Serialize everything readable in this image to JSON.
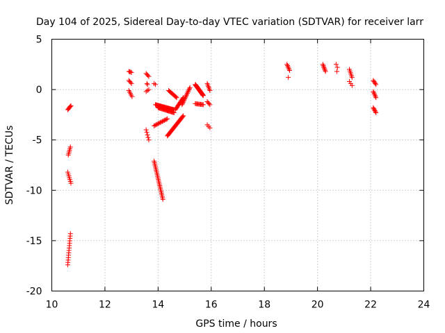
{
  "chart_data": {
    "type": "scatter",
    "title": "Day 104 of 2025, Sidereal Day-to-day VTEC variation (SDTVAR) for receiver larr",
    "xlabel": "GPS time / hours",
    "ylabel": "SDTVAR / TECUs",
    "xlim": [
      10,
      24
    ],
    "ylim": [
      -20,
      5
    ],
    "xticks": [
      "10",
      "12",
      "14",
      "16",
      "18",
      "20",
      "22",
      "24"
    ],
    "yticks": [
      "5",
      "0",
      "-5",
      "-10",
      "-15",
      "-20"
    ],
    "grid": true,
    "marker": "plus",
    "color": "#ff0000",
    "series": [
      {
        "name": "SDTVAR",
        "segments": [
          {
            "x": [
              10.6,
              10.72
            ],
            "y": [
              -2.0,
              -1.6
            ],
            "n": 6
          },
          {
            "x": [
              10.62,
              10.7
            ],
            "y": [
              -6.5,
              -5.7
            ],
            "n": 6
          },
          {
            "x": [
              10.6,
              10.72
            ],
            "y": [
              -8.2,
              -9.3
            ],
            "n": 7
          },
          {
            "x": [
              10.6,
              10.7
            ],
            "y": [
              -17.4,
              -14.3
            ],
            "n": 14
          },
          {
            "x": [
              12.9,
              13.0
            ],
            "y": [
              1.8,
              1.7
            ],
            "n": 4
          },
          {
            "x": [
              12.9,
              13.0
            ],
            "y": [
              0.9,
              0.6
            ],
            "n": 4
          },
          {
            "x": [
              12.9,
              13.02
            ],
            "y": [
              -0.1,
              -0.7
            ],
            "n": 5
          },
          {
            "x": [
              13.55,
              13.65
            ],
            "y": [
              1.6,
              1.3
            ],
            "n": 4
          },
          {
            "x": [
              13.58,
              13.6
            ],
            "y": [
              0.6,
              0.5
            ],
            "n": 2
          },
          {
            "x": [
              13.55,
              13.65
            ],
            "y": [
              -0.2,
              0.0
            ],
            "n": 3
          },
          {
            "x": [
              13.55,
              13.65
            ],
            "y": [
              -4.0,
              -5.0
            ],
            "n": 5
          },
          {
            "x": [
              13.85,
              13.9
            ],
            "y": [
              0.6,
              0.5
            ],
            "n": 2
          },
          {
            "x": [
              13.85,
              14.18
            ],
            "y": [
              -7.1,
              -10.9
            ],
            "n": 26
          },
          {
            "x": [
              13.85,
              14.35
            ],
            "y": [
              -3.6,
              -2.9
            ],
            "n": 14
          },
          {
            "x": [
              13.9,
              14.6
            ],
            "y": [
              -1.5,
              -2.0
            ],
            "n": 30
          },
          {
            "x": [
              14.0,
              14.6
            ],
            "y": [
              -1.8,
              -2.3
            ],
            "n": 22
          },
          {
            "x": [
              14.35,
              14.95
            ],
            "y": [
              -4.6,
              -2.6
            ],
            "n": 30
          },
          {
            "x": [
              14.4,
              14.7
            ],
            "y": [
              -0.1,
              -0.8
            ],
            "n": 12
          },
          {
            "x": [
              14.65,
              14.95
            ],
            "y": [
              -2.0,
              -0.8
            ],
            "n": 14
          },
          {
            "x": [
              14.9,
              15.2
            ],
            "y": [
              -1.5,
              0.2
            ],
            "n": 16
          },
          {
            "x": [
              15.4,
              15.7
            ],
            "y": [
              0.5,
              -0.6
            ],
            "n": 40
          },
          {
            "x": [
              15.4,
              15.7
            ],
            "y": [
              -1.4,
              -1.5
            ],
            "n": 10
          },
          {
            "x": [
              15.85,
              15.95
            ],
            "y": [
              0.6,
              -0.1
            ],
            "n": 6
          },
          {
            "x": [
              15.85,
              15.95
            ],
            "y": [
              -1.2,
              -1.5
            ],
            "n": 4
          },
          {
            "x": [
              15.85,
              15.95
            ],
            "y": [
              -3.5,
              -3.8
            ],
            "n": 3
          },
          {
            "x": [
              18.85,
              18.95
            ],
            "y": [
              2.5,
              1.9
            ],
            "n": 6
          },
          {
            "x": [
              18.9,
              18.9
            ],
            "y": [
              1.2,
              1.2
            ],
            "n": 1
          },
          {
            "x": [
              20.2,
              20.3
            ],
            "y": [
              2.5,
              1.8
            ],
            "n": 7
          },
          {
            "x": [
              20.7,
              20.75
            ],
            "y": [
              2.5,
              2.2
            ],
            "n": 2
          },
          {
            "x": [
              20.73,
              20.73
            ],
            "y": [
              1.8,
              1.8
            ],
            "n": 1
          },
          {
            "x": [
              21.2,
              21.3
            ],
            "y": [
              2.0,
              1.2
            ],
            "n": 6
          },
          {
            "x": [
              21.2,
              21.3
            ],
            "y": [
              0.8,
              0.4
            ],
            "n": 3
          },
          {
            "x": [
              22.1,
              22.2
            ],
            "y": [
              0.9,
              0.5
            ],
            "n": 5
          },
          {
            "x": [
              22.1,
              22.2
            ],
            "y": [
              -0.2,
              -0.8
            ],
            "n": 6
          },
          {
            "x": [
              22.1,
              22.2
            ],
            "y": [
              -1.8,
              -2.3
            ],
            "n": 6
          }
        ]
      }
    ]
  }
}
